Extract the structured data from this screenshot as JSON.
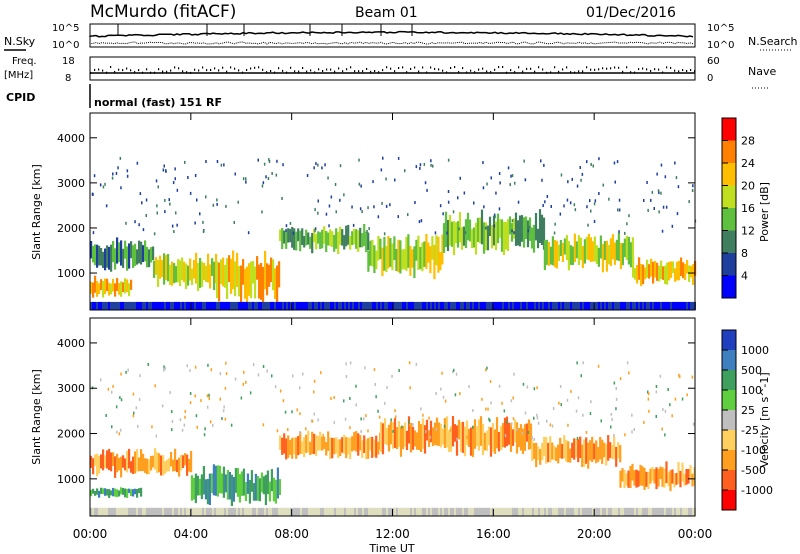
{
  "header": {
    "station": "McMurdo (fitACF)",
    "beam": "Beam 01",
    "date": "01/Dec/2016"
  },
  "noise_panel": {
    "left_label": "N.Sky",
    "left_top": "10^5",
    "left_bottom": "10^0",
    "right_label": "N.Search",
    "right_top": "10^5",
    "right_bottom": "10^0"
  },
  "freq_panel": {
    "left_label_1": "Freq.",
    "left_label_2": "[MHz]",
    "left_top": "18",
    "left_bottom": "8",
    "right_label": "Nave",
    "right_top": "60",
    "right_bottom": "0"
  },
  "cpid": {
    "label": "CPID",
    "value": "normal (fast) 151 RF"
  },
  "time_axis": {
    "label": "Time UT",
    "ticks": [
      "00:00",
      "04:00",
      "08:00",
      "12:00",
      "16:00",
      "20:00",
      "00:00"
    ]
  },
  "chart_data": [
    {
      "type": "heatmap",
      "name": "power",
      "ylabel": "Slant Range [km]",
      "y_ticks": [
        "1000",
        "2000",
        "3000",
        "4000"
      ],
      "ylim": [
        180,
        4550
      ],
      "xlim": [
        0,
        24
      ],
      "colorbar": {
        "label": "Power [dB]",
        "ticks": [
          "4",
          "8",
          "12",
          "16",
          "20",
          "24",
          "28"
        ],
        "range": [
          0,
          32
        ],
        "colors": [
          "#0000ff",
          "#1f3f9f",
          "#3f7f5f",
          "#5fbf3f",
          "#bfdf1f",
          "#ffbf00",
          "#ff7f00",
          "#ff0000"
        ]
      },
      "echo_bands": [
        {
          "t0": 0.0,
          "t1": 1.6,
          "r0": 500,
          "r1": 900,
          "level": 20
        },
        {
          "t0": 0.0,
          "t1": 2.5,
          "r0": 1100,
          "r1": 1700,
          "level": 9
        },
        {
          "t0": 2.5,
          "t1": 5.0,
          "r0": 700,
          "r1": 1400,
          "level": 14
        },
        {
          "t0": 5.0,
          "t1": 7.5,
          "r0": 450,
          "r1": 1400,
          "level": 18
        },
        {
          "t0": 7.5,
          "t1": 11.0,
          "r0": 1500,
          "r1": 2000,
          "level": 13
        },
        {
          "t0": 11.0,
          "t1": 14.0,
          "r0": 1000,
          "r1": 1800,
          "level": 15
        },
        {
          "t0": 14.0,
          "t1": 18.0,
          "r0": 1500,
          "r1": 2300,
          "level": 12
        },
        {
          "t0": 18.0,
          "t1": 21.5,
          "r0": 1100,
          "r1": 1800,
          "level": 16
        },
        {
          "t0": 21.5,
          "t1": 24.0,
          "r0": 800,
          "r1": 1300,
          "level": 20
        }
      ]
    },
    {
      "type": "heatmap",
      "name": "velocity",
      "ylabel": "Slant Range [km]",
      "y_ticks": [
        "1000",
        "2000",
        "3000",
        "4000"
      ],
      "ylim": [
        180,
        4550
      ],
      "xlim": [
        0,
        24
      ],
      "colorbar": {
        "label": "Velocity [m s^-1]",
        "ticks": [
          "1000",
          "500",
          "100",
          "25",
          "-25",
          "-100",
          "-500",
          "-1000"
        ],
        "colors": [
          "#1f3fbf",
          "#3f7fbf",
          "#3f9f5f",
          "#5fcf3f",
          "#bfbfbf",
          "#ffcf5f",
          "#ff9f1f",
          "#ff5f1f",
          "#ff0000"
        ]
      },
      "echo_bands": [
        {
          "t0": 0.0,
          "t1": 2.0,
          "r0": 600,
          "r1": 800,
          "level": 100
        },
        {
          "t0": 0.0,
          "t1": 4.0,
          "r0": 1100,
          "r1": 1600,
          "level": -500
        },
        {
          "t0": 4.0,
          "t1": 7.5,
          "r0": 500,
          "r1": 1200,
          "level": 100
        },
        {
          "t0": 7.5,
          "t1": 11.5,
          "r0": 1500,
          "r1": 2000,
          "level": -500
        },
        {
          "t0": 11.5,
          "t1": 17.5,
          "r0": 1600,
          "r1": 2300,
          "level": -500
        },
        {
          "t0": 17.5,
          "t1": 21.0,
          "r0": 1300,
          "r1": 1900,
          "level": -100
        },
        {
          "t0": 21.0,
          "t1": 24.0,
          "r0": 800,
          "r1": 1300,
          "level": -500
        }
      ]
    }
  ]
}
